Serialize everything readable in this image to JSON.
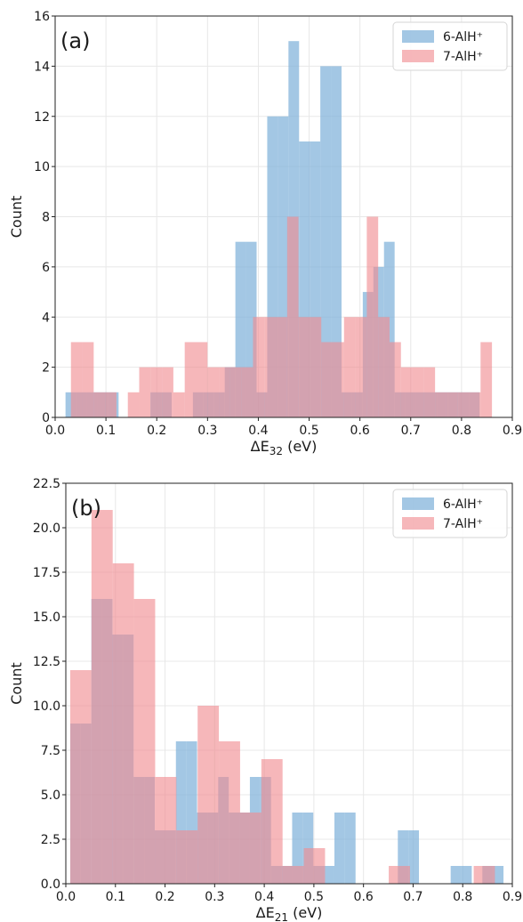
{
  "colors": {
    "series1": "#7fb1d9",
    "series2": "#f08a8f"
  },
  "chart_data": [
    {
      "type": "histogram",
      "panel_label": "(a)",
      "xlabel": "ΔE32 (eV)",
      "xlabel_parts": {
        "base": "ΔE",
        "sub": "32",
        "unit": " (eV)"
      },
      "ylabel": "Count",
      "xlim": [
        0.0,
        0.9
      ],
      "ylim": [
        0,
        16
      ],
      "xticks": [
        "0.0",
        "0.1",
        "0.2",
        "0.3",
        "0.4",
        "0.5",
        "0.6",
        "0.7",
        "0.8",
        "0.9"
      ],
      "yticks": [
        "0",
        "2",
        "4",
        "6",
        "8",
        "10",
        "12",
        "14",
        "16"
      ],
      "grid": true,
      "legend": "top-right",
      "series": [
        {
          "name": "6-AlH⁺",
          "bin_edges": [
            0.0204,
            0.0413,
            0.0622,
            0.0831,
            0.104,
            0.1249,
            0.1458,
            0.1667,
            0.1876,
            0.2085,
            0.2294,
            0.2503,
            0.2712,
            0.2921,
            0.313,
            0.3339,
            0.3548,
            0.3757,
            0.3966,
            0.4175,
            0.4384,
            0.4593,
            0.4802,
            0.5011,
            0.522,
            0.5429,
            0.5638,
            0.5847,
            0.6056,
            0.6265,
            0.6474,
            0.6683,
            0.6892,
            0.7101,
            0.731,
            0.7519,
            0.7728,
            0.7937,
            0.8146,
            0.8355
          ],
          "counts": [
            1,
            1,
            1,
            1,
            1,
            0,
            0,
            0,
            1,
            1,
            0,
            0,
            1,
            1,
            1,
            2,
            7,
            7,
            1,
            12,
            12,
            15,
            11,
            11,
            14,
            14,
            1,
            1,
            5,
            6,
            7,
            1,
            1,
            1,
            1,
            1,
            1,
            1,
            1
          ]
        },
        {
          "name": "7-AlH⁺",
          "bin_edges": [
            0.0311,
            0.0535,
            0.0759,
            0.0983,
            0.1207,
            0.1431,
            0.1655,
            0.1879,
            0.2103,
            0.2327,
            0.2551,
            0.2775,
            0.2999,
            0.3223,
            0.3447,
            0.3671,
            0.3895,
            0.4119,
            0.4343,
            0.4567,
            0.4791,
            0.5015,
            0.5239,
            0.5463,
            0.5687,
            0.5911,
            0.6135,
            0.6359,
            0.6583,
            0.6807,
            0.7031,
            0.7255,
            0.7479,
            0.7703,
            0.7927,
            0.8151,
            0.8375,
            0.8599
          ],
          "counts": [
            3,
            3,
            1,
            1,
            0,
            1,
            2,
            2,
            2,
            1,
            3,
            3,
            2,
            2,
            2,
            2,
            4,
            4,
            4,
            8,
            4,
            4,
            3,
            3,
            4,
            4,
            8,
            4,
            3,
            2,
            2,
            2,
            1,
            1,
            1,
            1,
            3
          ]
        }
      ]
    },
    {
      "type": "histogram",
      "panel_label": "(b)",
      "xlabel": "ΔE21 (eV)",
      "xlabel_parts": {
        "base": "ΔE",
        "sub": "21",
        "unit": " (eV)"
      },
      "ylabel": "Count",
      "xlim": [
        0.0,
        0.9
      ],
      "ylim": [
        0,
        22.5
      ],
      "xticks": [
        "0.0",
        "0.1",
        "0.2",
        "0.3",
        "0.4",
        "0.5",
        "0.6",
        "0.7",
        "0.8",
        "0.9"
      ],
      "yticks": [
        "0.0",
        "2.5",
        "5.0",
        "7.5",
        "10.0",
        "12.5",
        "15.0",
        "17.5",
        "20.0",
        "22.5"
      ],
      "grid": true,
      "legend": "top-right",
      "series": [
        {
          "name": "6-AlH⁺",
          "bin_edges": [
            0.0089,
            0.0302,
            0.0515,
            0.0728,
            0.0941,
            0.1154,
            0.1367,
            0.158,
            0.1793,
            0.2006,
            0.2219,
            0.2432,
            0.2645,
            0.2858,
            0.3071,
            0.3284,
            0.3497,
            0.371,
            0.3923,
            0.4136,
            0.4349,
            0.4562,
            0.4775,
            0.4988,
            0.5201,
            0.5414,
            0.5627,
            0.584,
            0.6053,
            0.6266,
            0.6479,
            0.6692,
            0.6905,
            0.7118,
            0.7331,
            0.7544,
            0.7757,
            0.797,
            0.8183,
            0.8396,
            0.8609,
            0.8822
          ],
          "counts": [
            9,
            9,
            16,
            16,
            14,
            14,
            6,
            6,
            3,
            3,
            8,
            8,
            4,
            4,
            6,
            4,
            4,
            6,
            6,
            1,
            1,
            4,
            4,
            1,
            1,
            4,
            4,
            0,
            0,
            0,
            0,
            3,
            3,
            0,
            0,
            0,
            1,
            1,
            0,
            1,
            1
          ]
        },
        {
          "name": "7-AlH⁺",
          "bin_edges": [
            0.0089,
            0.0517,
            0.0945,
            0.1373,
            0.1801,
            0.2229,
            0.2657,
            0.3085,
            0.3513,
            0.3941,
            0.4369,
            0.4797,
            0.5225,
            0.5653,
            0.6081,
            0.6509,
            0.6937,
            0.7365,
            0.7793,
            0.8221,
            0.8649
          ],
          "counts": [
            12,
            21,
            18,
            16,
            6,
            3,
            10,
            8,
            4,
            7,
            1,
            2,
            0,
            0,
            0,
            1,
            0,
            0,
            0,
            1
          ]
        }
      ]
    }
  ]
}
